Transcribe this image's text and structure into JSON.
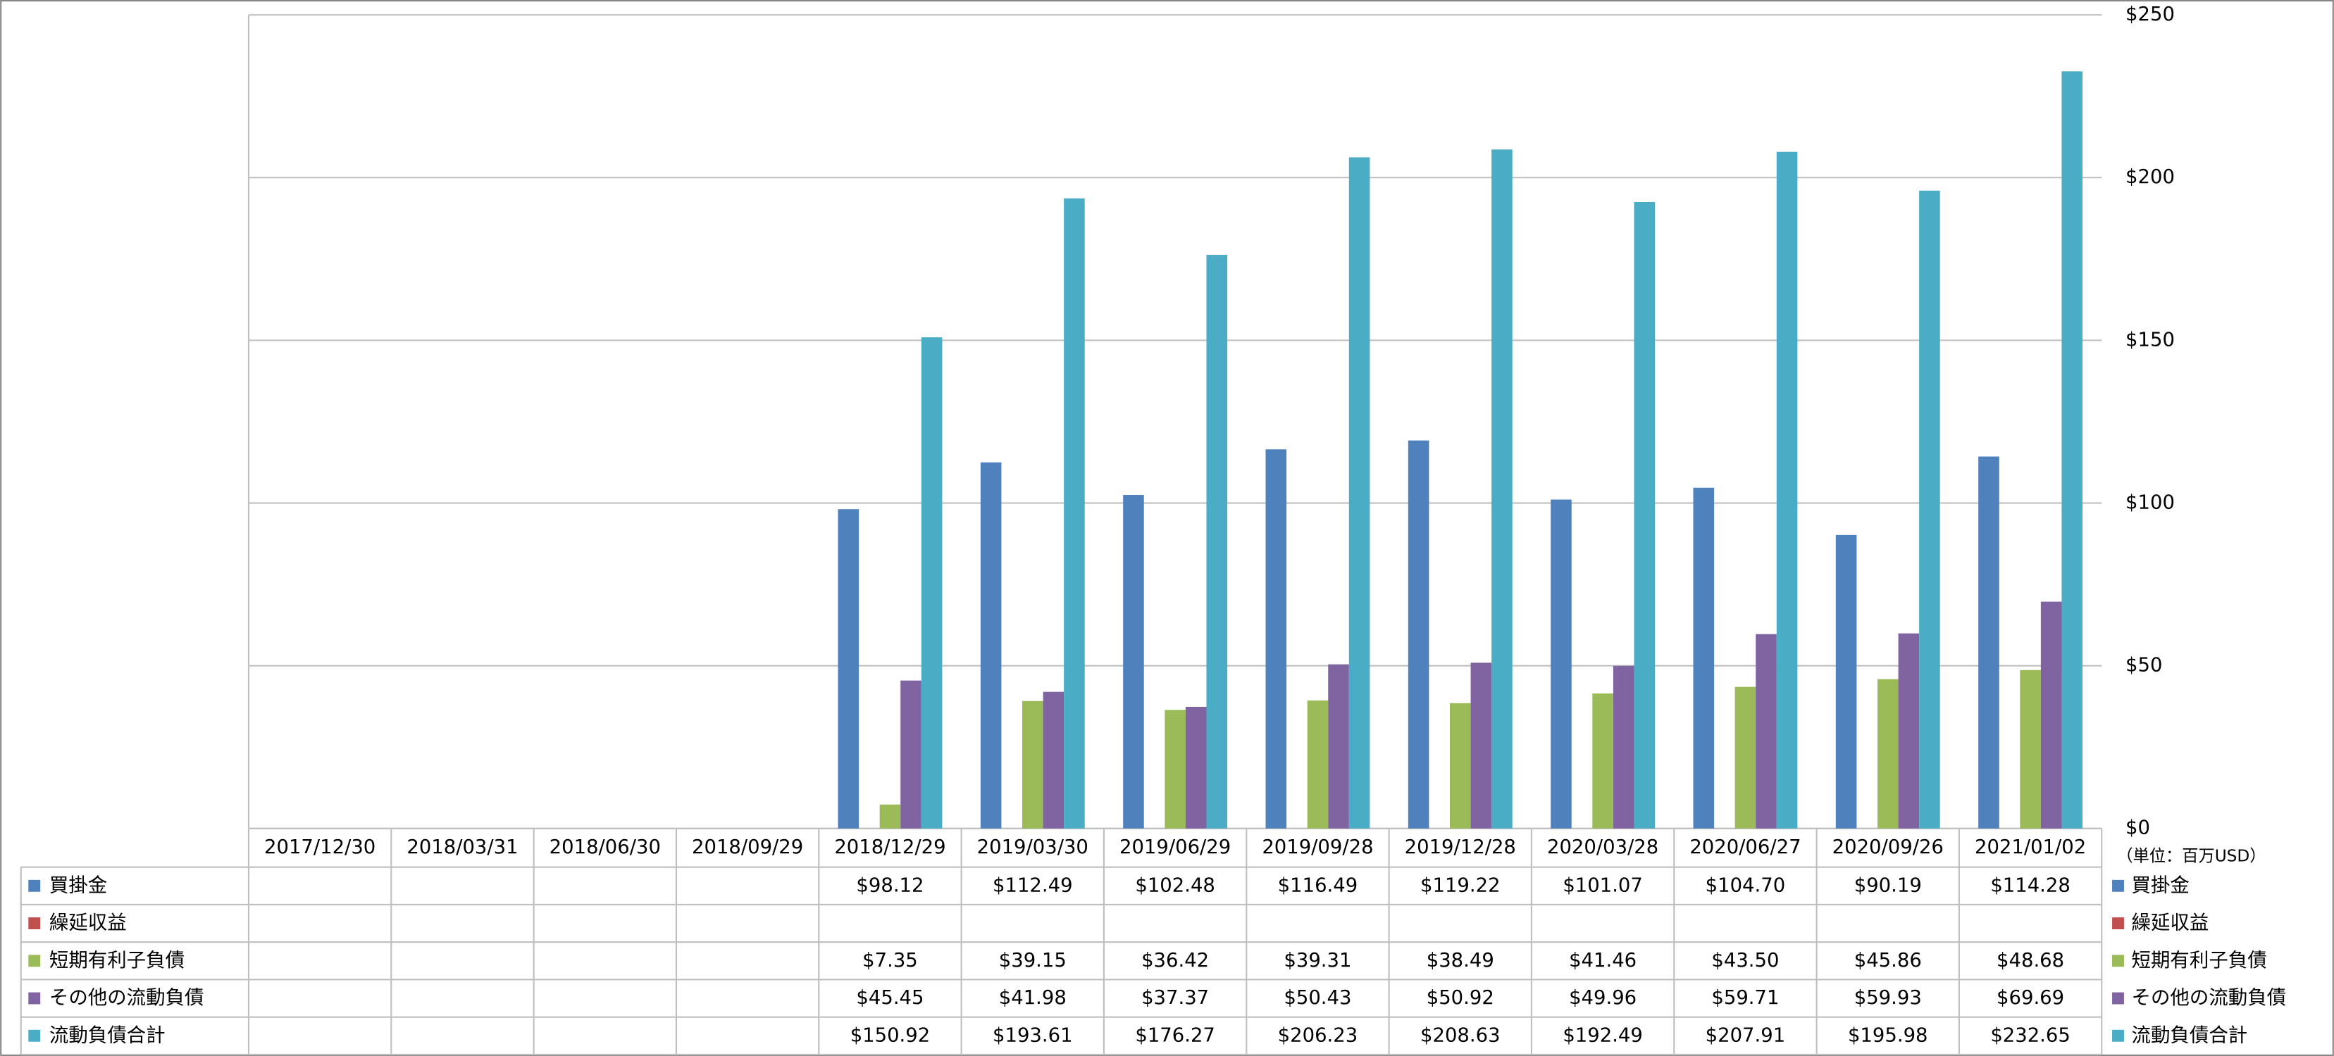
{
  "chart_data": {
    "type": "bar",
    "unit_label": "（単位：百万USD）",
    "categories": [
      "2017/12/30",
      "2018/03/31",
      "2018/06/30",
      "2018/09/29",
      "2018/12/29",
      "2019/03/30",
      "2019/06/29",
      "2019/09/28",
      "2019/12/28",
      "2020/03/28",
      "2020/06/27",
      "2020/09/26",
      "2021/01/02"
    ],
    "series": [
      {
        "name": "買掛金",
        "color": "#4f81bd",
        "values": [
          null,
          null,
          null,
          null,
          98.12,
          112.49,
          102.48,
          116.49,
          119.22,
          101.07,
          104.7,
          90.19,
          114.28
        ],
        "value_labels": [
          null,
          null,
          null,
          null,
          "$98.12",
          "$112.49",
          "$102.48",
          "$116.49",
          "$119.22",
          "$101.07",
          "$104.70",
          "$90.19",
          "$114.28"
        ]
      },
      {
        "name": "繰延収益",
        "color": "#c0504d",
        "values": [
          null,
          null,
          null,
          null,
          null,
          null,
          null,
          null,
          null,
          null,
          null,
          null,
          null
        ],
        "value_labels": [
          null,
          null,
          null,
          null,
          null,
          null,
          null,
          null,
          null,
          null,
          null,
          null,
          null
        ]
      },
      {
        "name": "短期有利子負債",
        "color": "#9bbb59",
        "values": [
          null,
          null,
          null,
          null,
          7.35,
          39.15,
          36.42,
          39.31,
          38.49,
          41.46,
          43.5,
          45.86,
          48.68
        ],
        "value_labels": [
          null,
          null,
          null,
          null,
          "$7.35",
          "$39.15",
          "$36.42",
          "$39.31",
          "$38.49",
          "$41.46",
          "$43.50",
          "$45.86",
          "$48.68"
        ]
      },
      {
        "name": "その他の流動負債",
        "color": "#8064a2",
        "values": [
          null,
          null,
          null,
          null,
          45.45,
          41.98,
          37.37,
          50.43,
          50.92,
          49.96,
          59.71,
          59.93,
          69.69
        ],
        "value_labels": [
          null,
          null,
          null,
          null,
          "$45.45",
          "$41.98",
          "$37.37",
          "$50.43",
          "$50.92",
          "$49.96",
          "$59.71",
          "$59.93",
          "$69.69"
        ]
      },
      {
        "name": "流動負債合計",
        "color": "#4bacc6",
        "values": [
          null,
          null,
          null,
          null,
          150.92,
          193.61,
          176.27,
          206.23,
          208.63,
          192.49,
          207.91,
          195.98,
          232.65
        ],
        "value_labels": [
          null,
          null,
          null,
          null,
          "$150.92",
          "$193.61",
          "$176.27",
          "$206.23",
          "$208.63",
          "$192.49",
          "$207.91",
          "$195.98",
          "$232.65"
        ]
      }
    ],
    "ylim": [
      0,
      250
    ],
    "yticks": [
      {
        "value": 0,
        "label": "$0"
      },
      {
        "value": 50,
        "label": "$50"
      },
      {
        "value": 100,
        "label": "$100"
      },
      {
        "value": 150,
        "label": "$150"
      },
      {
        "value": 200,
        "label": "$200"
      },
      {
        "value": 250,
        "label": "$250"
      }
    ],
    "grid": true
  }
}
